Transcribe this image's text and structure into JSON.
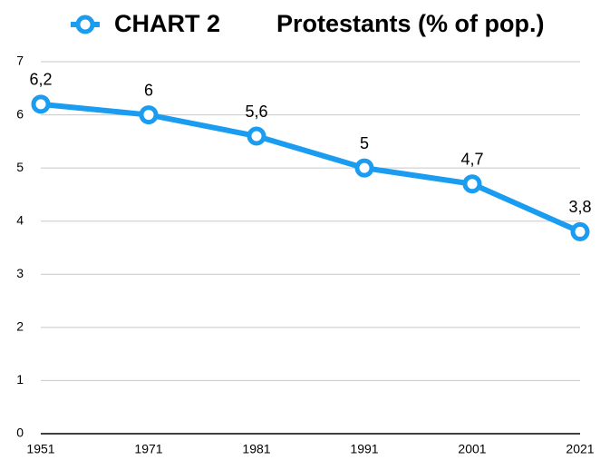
{
  "chart_data": {
    "type": "line",
    "title": "CHART 2",
    "categories": [
      "1951",
      "1971",
      "1981",
      "1991",
      "2001",
      "2021"
    ],
    "series": [
      {
        "name": "Protestants (% of pop.)",
        "color": "#1a9cf0",
        "values": [
          6.2,
          6,
          5.6,
          5,
          4.7,
          3.8
        ],
        "value_labels": [
          "6,2",
          "6",
          "5,6",
          "5",
          "4,7",
          "3,8"
        ]
      }
    ],
    "ylim": [
      0,
      7
    ],
    "yticks": [
      0,
      1,
      2,
      3,
      4,
      5,
      6,
      7
    ],
    "grid": true
  }
}
